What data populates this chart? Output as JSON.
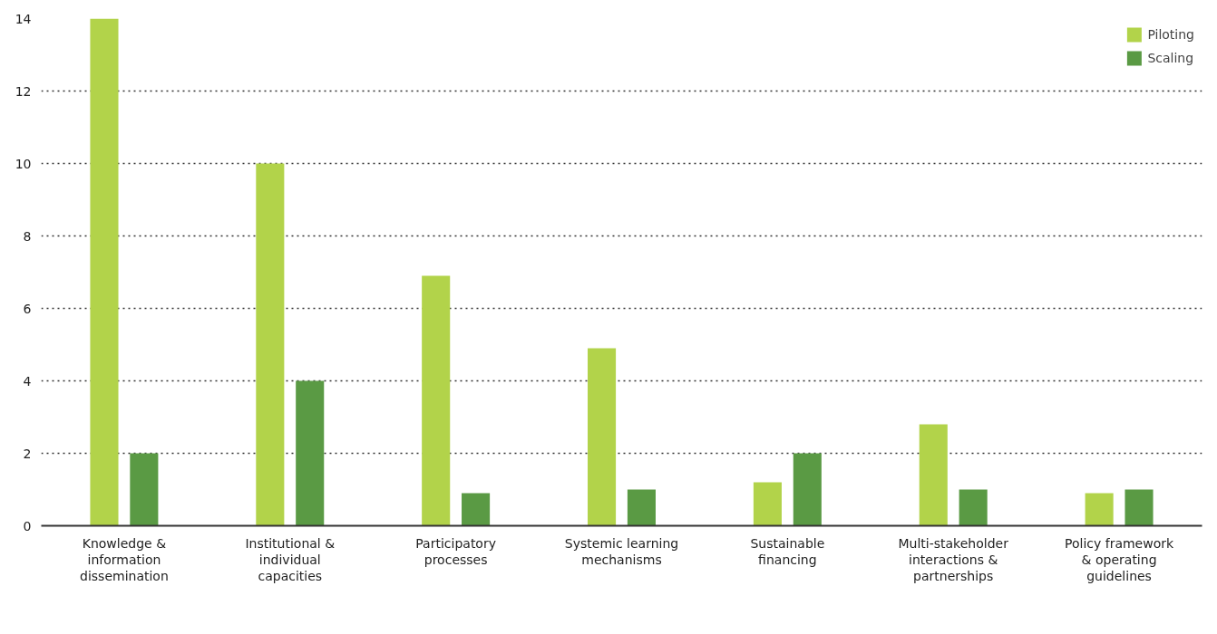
{
  "chart_data": {
    "type": "bar",
    "categories": [
      "Knowledge & information dissemination",
      "Institutional & individual capacities",
      "Participatory processes",
      "Systemic learning mechanisms",
      "Sustainable financing",
      "Multi-stakeholder interactions & partnerships",
      "Policy framework & operating guidelines"
    ],
    "series": [
      {
        "name": "Piloting",
        "color": "#b2d34a",
        "values": [
          14,
          10,
          6.9,
          4.9,
          1.2,
          2.8,
          0.9
        ]
      },
      {
        "name": "Scaling",
        "color": "#5a9a44",
        "values": [
          2,
          4,
          0.9,
          1,
          2,
          1,
          1
        ]
      }
    ],
    "ylim": [
      0,
      14
    ],
    "yticks": [
      0,
      2,
      4,
      6,
      8,
      10,
      12,
      14
    ],
    "grid": "y",
    "legend": "top right"
  }
}
